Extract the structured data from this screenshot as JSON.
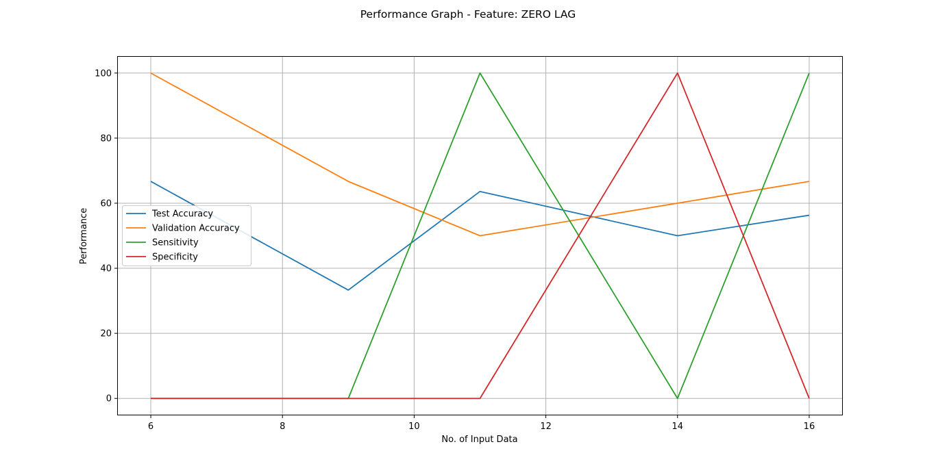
{
  "chart_data": {
    "type": "line",
    "title": "Performance Graph - Feature: ZERO LAG",
    "xlabel": "No. of Input Data",
    "ylabel": "Performance",
    "x": [
      6,
      9,
      11,
      14,
      16
    ],
    "xlim": [
      5.5,
      16.5
    ],
    "ylim": [
      -5,
      105
    ],
    "xticks": [
      6,
      8,
      10,
      12,
      14,
      16
    ],
    "yticks": [
      0,
      20,
      40,
      60,
      80,
      100
    ],
    "grid": true,
    "legend_position": "center-left",
    "series": [
      {
        "name": "Test Accuracy",
        "color": "#1f77b4",
        "values": [
          66.7,
          33.3,
          63.6,
          50,
          56.3
        ]
      },
      {
        "name": "Validation Accuracy",
        "color": "#ff7f0e",
        "values": [
          100,
          66.7,
          50,
          60,
          66.7
        ]
      },
      {
        "name": "Sensitivity",
        "color": "#2ca02c",
        "values": [
          0,
          0,
          100,
          0,
          100
        ]
      },
      {
        "name": "Specificity",
        "color": "#d62728",
        "values": [
          0,
          0,
          0,
          100,
          0
        ]
      }
    ]
  }
}
